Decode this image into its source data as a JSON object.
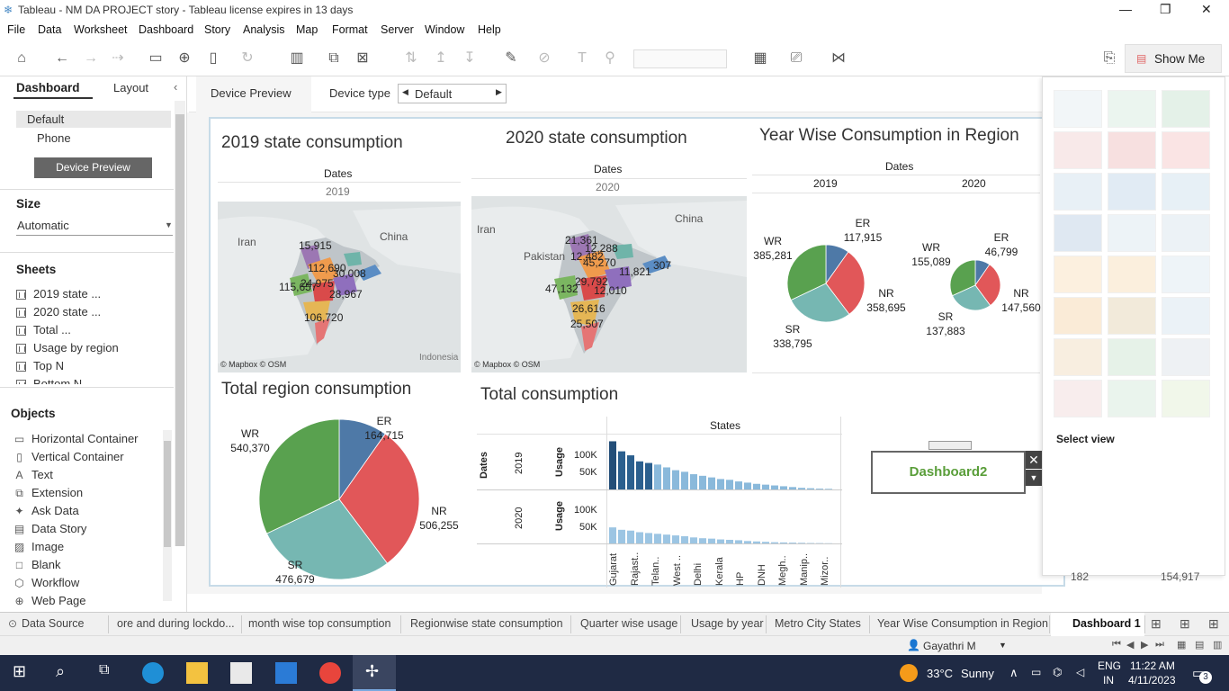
{
  "window": {
    "title": "Tableau - NM DA PROJECT story - Tableau license expires in 13 days"
  },
  "menu": [
    "File",
    "Data",
    "Worksheet",
    "Dashboard",
    "Story",
    "Analysis",
    "Map",
    "Format",
    "Server",
    "Window",
    "Help"
  ],
  "toolbar": {
    "show_me": "Show Me"
  },
  "left": {
    "tab_dashboard": "Dashboard",
    "tab_layout": "Layout",
    "devices": [
      "Default",
      "Phone"
    ],
    "device_preview_button": "Device Preview",
    "size_header": "Size",
    "size_value": "Automatic",
    "sheets_header": "Sheets",
    "sheets": [
      "2019 state ...",
      "2020 state ...",
      "Total ...",
      "Usage by region",
      "Top N",
      "Bottom N"
    ],
    "objects_header": "Objects",
    "objects": [
      {
        "label": "Horizontal Container",
        "icon": "horizontal-container-icon"
      },
      {
        "label": "Vertical Container",
        "icon": "vertical-container-icon"
      },
      {
        "label": "Text",
        "icon": "text-icon"
      },
      {
        "label": "Extension",
        "icon": "extension-icon"
      },
      {
        "label": "Ask Data",
        "icon": "ask-data-icon"
      },
      {
        "label": "Data Story",
        "icon": "data-story-icon"
      },
      {
        "label": "Image",
        "icon": "image-icon"
      },
      {
        "label": "Blank",
        "icon": "blank-icon"
      },
      {
        "label": "Workflow",
        "icon": "workflow-icon"
      },
      {
        "label": "Web Page",
        "icon": "web-page-icon"
      }
    ]
  },
  "devicebar": {
    "preview_tab": "Device Preview",
    "type_label": "Device type",
    "type_value": "Default"
  },
  "dashboard": {
    "map2019": {
      "title": "2019 state consumption",
      "header": "Dates",
      "year": "2019",
      "credit": "© Mapbox © OSM",
      "labels": [
        "15,915",
        "112,690",
        "30,008",
        "115,657",
        "24,975",
        "28,967",
        "106,720"
      ],
      "places": [
        "Iran",
        "China",
        "Indonesia"
      ]
    },
    "map2020": {
      "title": "2020 state consumption",
      "header": "Dates",
      "year": "2020",
      "credit": "© Mapbox © OSM",
      "labels": [
        "21,361",
        "12,288",
        "12,482",
        "45,270",
        "11,821",
        "307",
        "47,132",
        "29,792",
        "12,010",
        "26,616",
        "25,507"
      ],
      "places": [
        "Iran",
        "Pakistan",
        "China"
      ]
    },
    "yearwise": {
      "title": "Year Wise Consumption in Region",
      "header": "Dates",
      "years": [
        "2019",
        "2020"
      ],
      "pie2019": [
        {
          "name": "ER",
          "value": "117,915"
        },
        {
          "name": "NR",
          "value": "358,695"
        },
        {
          "name": "SR",
          "value": "338,795"
        },
        {
          "name": "WR",
          "value": "385,281"
        }
      ],
      "pie2020": [
        {
          "name": "ER",
          "value": "46,799"
        },
        {
          "name": "NR",
          "value": "147,560"
        },
        {
          "name": "SR",
          "value": "137,883"
        },
        {
          "name": "WR",
          "value": "155,089"
        }
      ]
    },
    "total_region": {
      "title": "Total region consumption",
      "slices": [
        {
          "name": "ER",
          "value": "164,715"
        },
        {
          "name": "NR",
          "value": "506,255"
        },
        {
          "name": "SR",
          "value": "476,679"
        },
        {
          "name": "WR",
          "value": "540,370"
        }
      ]
    },
    "total": {
      "title": "Total consumption",
      "col_header": "States",
      "row_header": "Dates",
      "measure": "Usage",
      "rows": [
        "2019",
        "2020"
      ],
      "ticks": [
        "100K",
        "50K"
      ],
      "states": [
        "Gujarat",
        "Rajast..",
        "Telan..",
        "West ..",
        "Delhi",
        "Kerala",
        "HP",
        "DNH",
        "Megh..",
        "Manip..",
        "Mizor.."
      ]
    },
    "button": {
      "label": "Dashboard2"
    }
  },
  "showme": {
    "select_view": "Select view"
  },
  "tabs": [
    "Data Source",
    "ore and during lockdo...",
    "month wise top consumption",
    "Regionwise state consumption",
    "Quarter wise usage",
    "Usage by year",
    "Metro City States",
    "Year Wise Consumption in Region",
    "Dashboard 1"
  ],
  "status": {
    "user": "Gayathri M",
    "partial": [
      "182",
      "154,917"
    ]
  },
  "taskbar": {
    "temp": "33°C",
    "weather": "Sunny",
    "lang1": "ENG",
    "lang2": "IN",
    "time": "11:22 AM",
    "date": "4/11/2023",
    "notif": "3"
  },
  "chart_data": [
    {
      "type": "pie",
      "title": "Total region consumption",
      "categories": [
        "ER",
        "NR",
        "SR",
        "WR"
      ],
      "values": [
        164715,
        506255,
        476679,
        540370
      ]
    },
    {
      "type": "pie",
      "title": "Year Wise Consumption in Region",
      "series": [
        {
          "name": "2019",
          "values": [
            117915,
            358695,
            338795,
            385281
          ]
        },
        {
          "name": "2020",
          "values": [
            46799,
            147560,
            137883,
            155089
          ]
        }
      ],
      "categories": [
        "ER",
        "NR",
        "SR",
        "WR"
      ]
    },
    {
      "type": "bar",
      "title": "Total consumption",
      "series": [
        {
          "name": "2019",
          "values": [
            120000,
            95000,
            85000,
            70000,
            66000,
            62000,
            55000,
            48000,
            44000,
            38000,
            34000,
            30000,
            26000,
            24000,
            20000,
            17000,
            14000,
            12000,
            10000,
            8000,
            6000,
            4000,
            3000,
            2000,
            1500
          ]
        },
        {
          "name": "2020",
          "values": [
            40000,
            34000,
            32000,
            28000,
            26000,
            24000,
            22000,
            20000,
            18000,
            15000,
            13000,
            12000,
            10000,
            9000,
            8000,
            6000,
            5000,
            4000,
            3000,
            2500,
            2000,
            1500,
            1000,
            800,
            500
          ]
        }
      ],
      "ylabel": "Usage",
      "xlabel": "States"
    }
  ]
}
